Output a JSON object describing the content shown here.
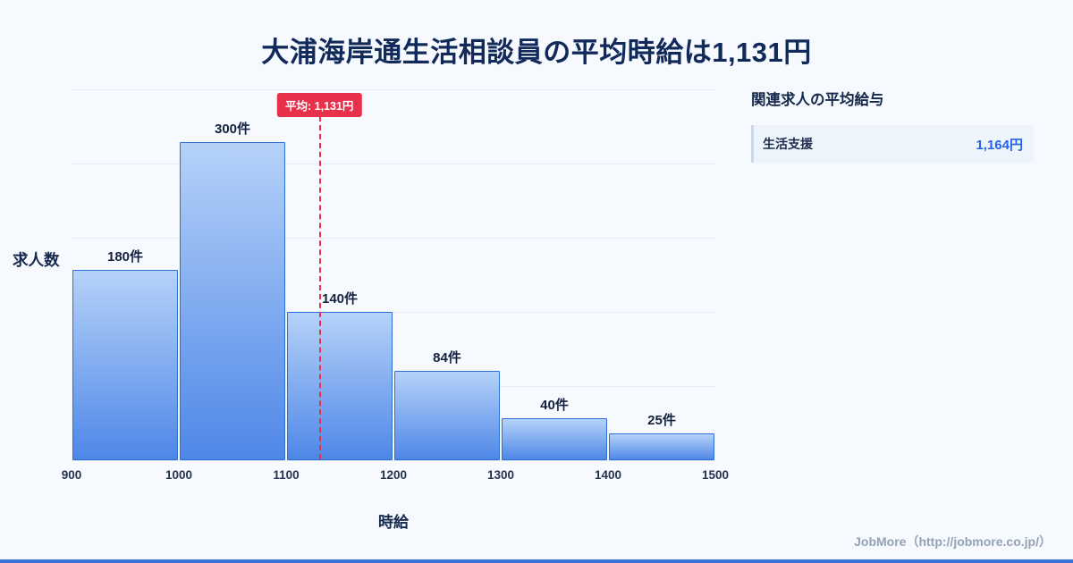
{
  "title": "大浦海岸通生活相談員の平均時給は1,131円",
  "chart_data": {
    "type": "bar",
    "subtype": "histogram",
    "bin_edges": [
      900,
      1000,
      1100,
      1200,
      1300,
      1400,
      1500
    ],
    "counts": [
      180,
      300,
      140,
      84,
      40,
      25
    ],
    "bar_labels": [
      "180件",
      "300件",
      "140件",
      "84件",
      "40件",
      "25件"
    ],
    "x_tick_labels": [
      "900",
      "1000",
      "1100",
      "1200",
      "1300",
      "1400",
      "1500"
    ],
    "xlabel": "時給",
    "ylabel": "求人数",
    "ylim": [
      0,
      350
    ],
    "grid": "horizontal",
    "legend": "none",
    "average_line": {
      "value": 1131,
      "label": "平均: 1,131円"
    }
  },
  "side_panel": {
    "title": "関連求人の平均給与",
    "items": [
      {
        "label": "生活支援",
        "value": "1,164円"
      }
    ]
  },
  "footer": {
    "credit": "JobMore（http://jobmore.co.jp/）"
  },
  "colors": {
    "background": "#f6f9fe",
    "title_text": "#112a5a",
    "bar_fill_top": "#b5d2f8",
    "bar_fill_bottom": "#4f87e8",
    "bar_border": "#2e6fd4",
    "average_line": "#e8304a",
    "value_text": "#2563eb",
    "footer_text": "#94a2b3"
  }
}
